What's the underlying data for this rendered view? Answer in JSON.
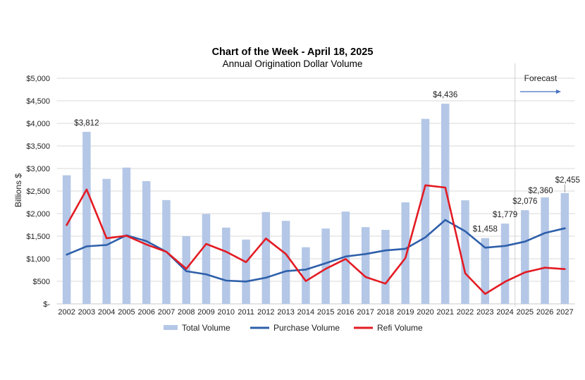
{
  "chart_data": {
    "type": "bar+line",
    "title": "Chart of the Week - April 18, 2025",
    "subtitle": "Annual Origination Dollar Volume",
    "xlabel": "",
    "ylabel": "Billions $",
    "ylim": [
      0,
      5000
    ],
    "yticks": [
      0,
      500,
      1000,
      1500,
      2000,
      2500,
      3000,
      3500,
      4000,
      4500,
      5000
    ],
    "ytick_labels": [
      "$-",
      "$500",
      "$1,000",
      "$1,500",
      "$2,000",
      "$2,500",
      "$3,000",
      "$3,500",
      "$4,000",
      "$4,500",
      "$5,000"
    ],
    "grid": true,
    "legend_position": "bottom",
    "categories": [
      "2002",
      "2003",
      "2004",
      "2005",
      "2006",
      "2007",
      "2008",
      "2009",
      "2010",
      "2011",
      "2012",
      "2013",
      "2014",
      "2015",
      "2016",
      "2017",
      "2018",
      "2019",
      "2020",
      "2021",
      "2022",
      "2023",
      "2024",
      "2025",
      "2026",
      "2027"
    ],
    "series": [
      {
        "name": "Total Volume",
        "type": "bar",
        "color": "#b4c7e7",
        "values": [
          2850,
          3812,
          2770,
          3020,
          2720,
          2300,
          1500,
          1990,
          1690,
          1425,
          2035,
          1840,
          1255,
          1670,
          2045,
          1700,
          1640,
          2250,
          4100,
          4436,
          2295,
          1458,
          1779,
          2076,
          2360,
          2455
        ]
      },
      {
        "name": "Purchase Volume",
        "type": "line",
        "color": "#2e5faa",
        "values": [
          1090,
          1275,
          1305,
          1520,
          1390,
          1155,
          725,
          655,
          515,
          495,
          580,
          725,
          760,
          900,
          1050,
          1105,
          1185,
          1220,
          1475,
          1860,
          1610,
          1245,
          1285,
          1380,
          1570,
          1675
        ]
      },
      {
        "name": "Refi Volume",
        "type": "line",
        "color": "#e31b23",
        "values": [
          1745,
          2535,
          1455,
          1510,
          1315,
          1155,
          777,
          1328,
          1156,
          925,
          1448,
          1105,
          505,
          777,
          995,
          595,
          448,
          1016,
          2628,
          2578,
          678,
          220,
          490,
          698,
          802,
          770
        ]
      }
    ],
    "data_labels": [
      {
        "category": "2003",
        "text": "$3,812"
      },
      {
        "category": "2021",
        "text": "$4,436"
      },
      {
        "category": "2023",
        "text": "$1,458"
      },
      {
        "category": "2024",
        "text": "$1,779"
      },
      {
        "category": "2025",
        "text": "$2,076"
      },
      {
        "category": "2026",
        "text": "$2,360"
      },
      {
        "category": "2027",
        "text": "$2,455"
      }
    ],
    "annotations": [
      {
        "text": "Forecast",
        "starts_at_category": "2025",
        "arrow": "right"
      }
    ]
  }
}
